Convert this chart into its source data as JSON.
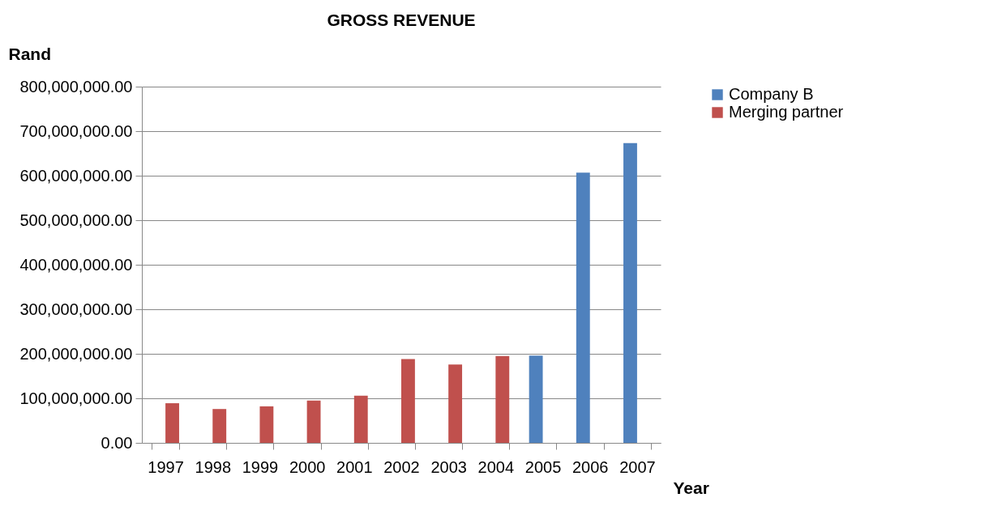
{
  "chart_data": {
    "type": "bar",
    "title": "GROSS REVENUE",
    "ylabel": "Rand",
    "xlabel": "Year",
    "categories": [
      "1997",
      "1998",
      "1999",
      "2000",
      "2001",
      "2002",
      "2003",
      "2004",
      "2005",
      "2006",
      "2007"
    ],
    "series": [
      {
        "name": "Company B",
        "color": "#4f81bd",
        "values": [
          null,
          null,
          null,
          null,
          null,
          null,
          null,
          null,
          196000000,
          607000000,
          673000000
        ]
      },
      {
        "name": "Merging partner",
        "color": "#c0504d",
        "values": [
          89000000,
          76000000,
          82000000,
          95000000,
          106000000,
          188000000,
          176000000,
          195000000,
          null,
          null,
          null
        ]
      }
    ],
    "ylim": [
      0,
      800000000
    ],
    "yticks": [
      {
        "value": 0,
        "label": "0.00"
      },
      {
        "value": 100000000,
        "label": "100,000,000.00"
      },
      {
        "value": 200000000,
        "label": "200,000,000.00"
      },
      {
        "value": 300000000,
        "label": "300,000,000.00"
      },
      {
        "value": 400000000,
        "label": "400,000,000.00"
      },
      {
        "value": 500000000,
        "label": "500,000,000.00"
      },
      {
        "value": 600000000,
        "label": "600,000,000.00"
      },
      {
        "value": 700000000,
        "label": "700,000,000.00"
      },
      {
        "value": 800000000,
        "label": "800,000,000.00"
      }
    ],
    "grid": "y",
    "legend": "right"
  }
}
